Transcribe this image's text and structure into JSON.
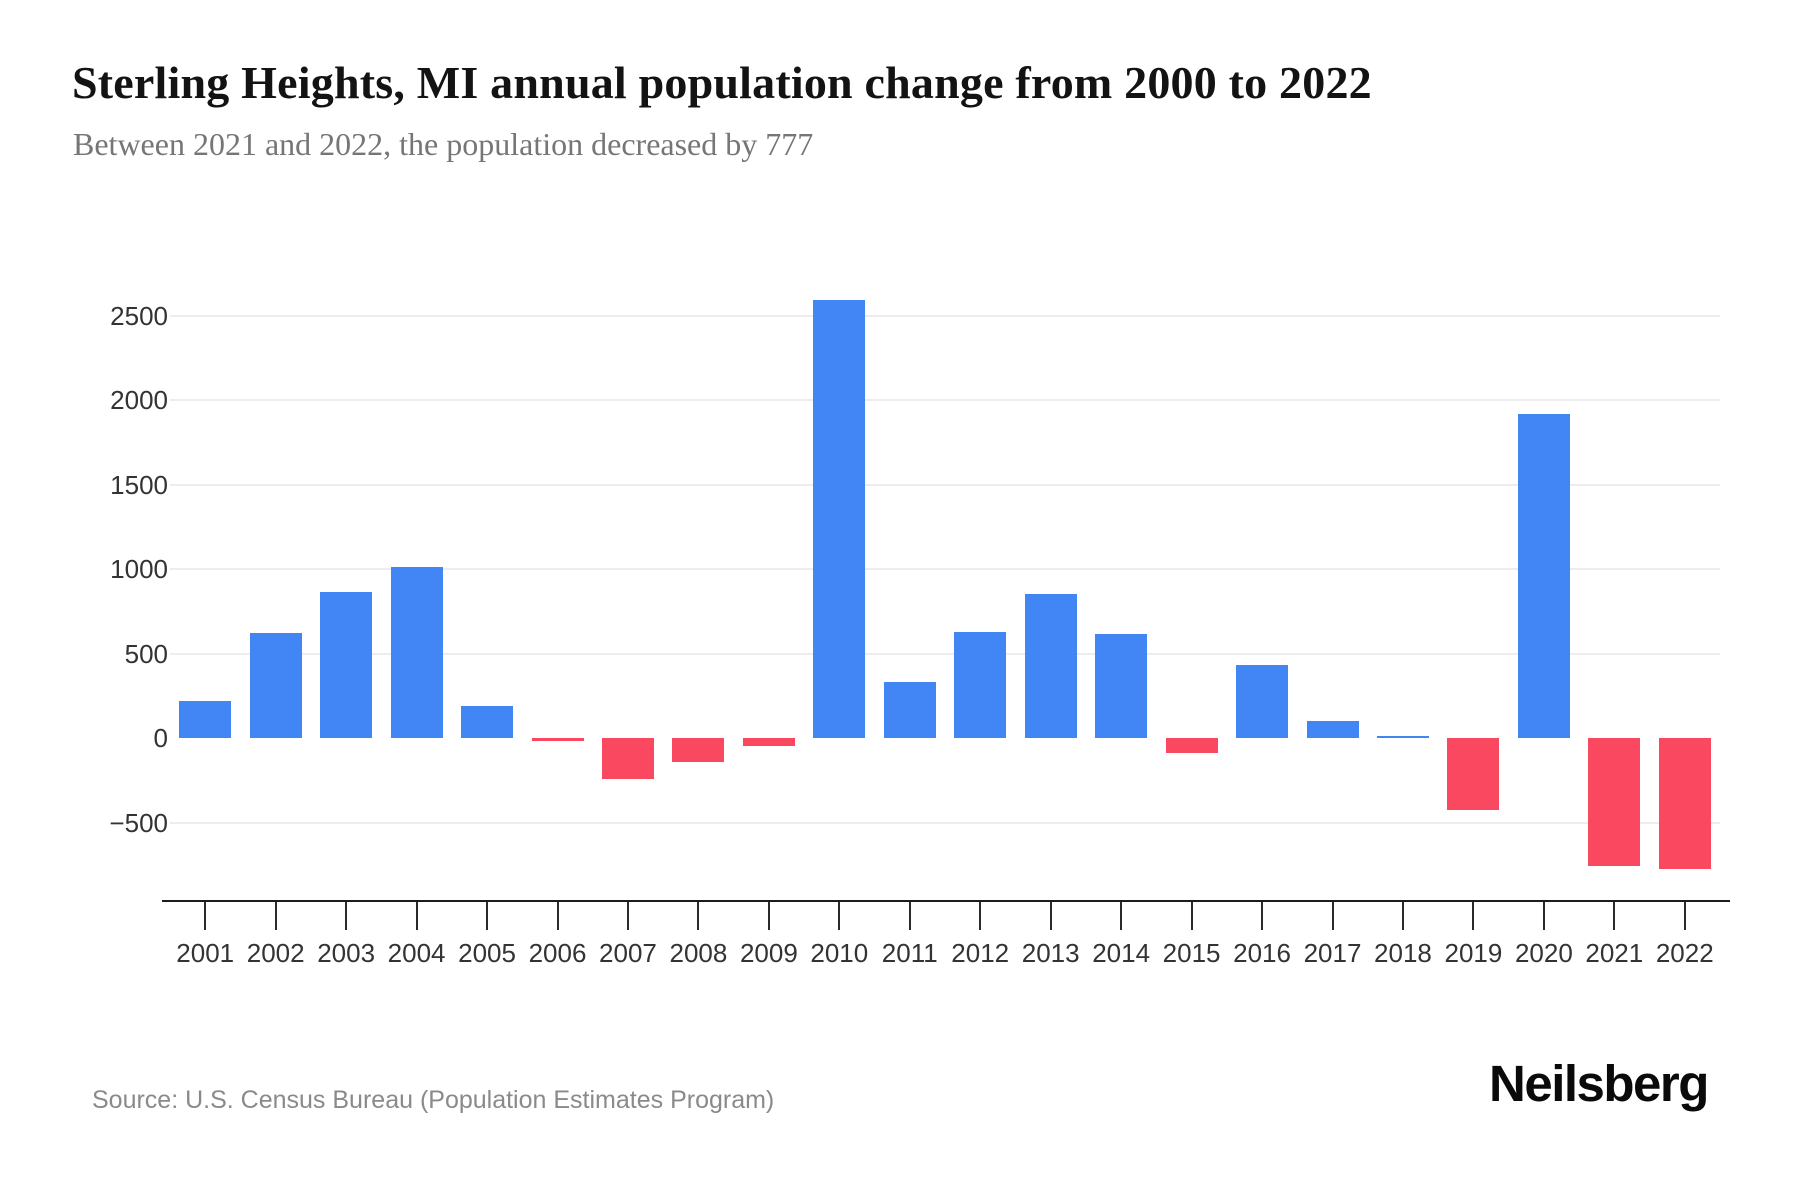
{
  "page": {
    "title": "Sterling Heights, MI annual population change from 2000 to 2022",
    "subtitle": "Between 2021 and 2022, the population decreased by 777",
    "source": "Source: U.S. Census Bureau (Population Estimates Program)",
    "brand": "Neilsberg"
  },
  "colors": {
    "positive_bar": "#4285F4",
    "negative_bar": "#F9485F",
    "gridline": "#EDEDED",
    "axis": "#1C1C1C",
    "tick_label": "#333333",
    "title": "#131313",
    "subtitle": "#767676",
    "source_text": "#8A8A8A"
  },
  "chart_data": {
    "type": "bar",
    "title": "Sterling Heights, MI annual population change from 2000 to 2022",
    "subtitle": "Between 2021 and 2022, the population decreased by 777",
    "xlabel": "",
    "ylabel": "",
    "categories": [
      "2001",
      "2002",
      "2003",
      "2004",
      "2005",
      "2006",
      "2007",
      "2008",
      "2009",
      "2010",
      "2011",
      "2012",
      "2013",
      "2014",
      "2015",
      "2016",
      "2017",
      "2018",
      "2019",
      "2020",
      "2021",
      "2022"
    ],
    "values": [
      220,
      620,
      865,
      1010,
      190,
      -20,
      -245,
      -140,
      -45,
      2590,
      330,
      630,
      850,
      615,
      -90,
      430,
      100,
      10,
      -425,
      1920,
      -760,
      -777
    ],
    "y_ticks": [
      2500,
      2000,
      1500,
      1000,
      500,
      0,
      -500
    ],
    "y_tick_labels": [
      "2500",
      "2000",
      "1500",
      "1000",
      "500",
      "0",
      "−500"
    ],
    "gridline_values": [
      2500,
      2000,
      1500,
      1000,
      500,
      -500
    ],
    "ylim": [
      -850,
      2750
    ],
    "grid": "horizontal-only",
    "legend": "none",
    "positive_color": "#4285F4",
    "negative_color": "#F9485F"
  }
}
